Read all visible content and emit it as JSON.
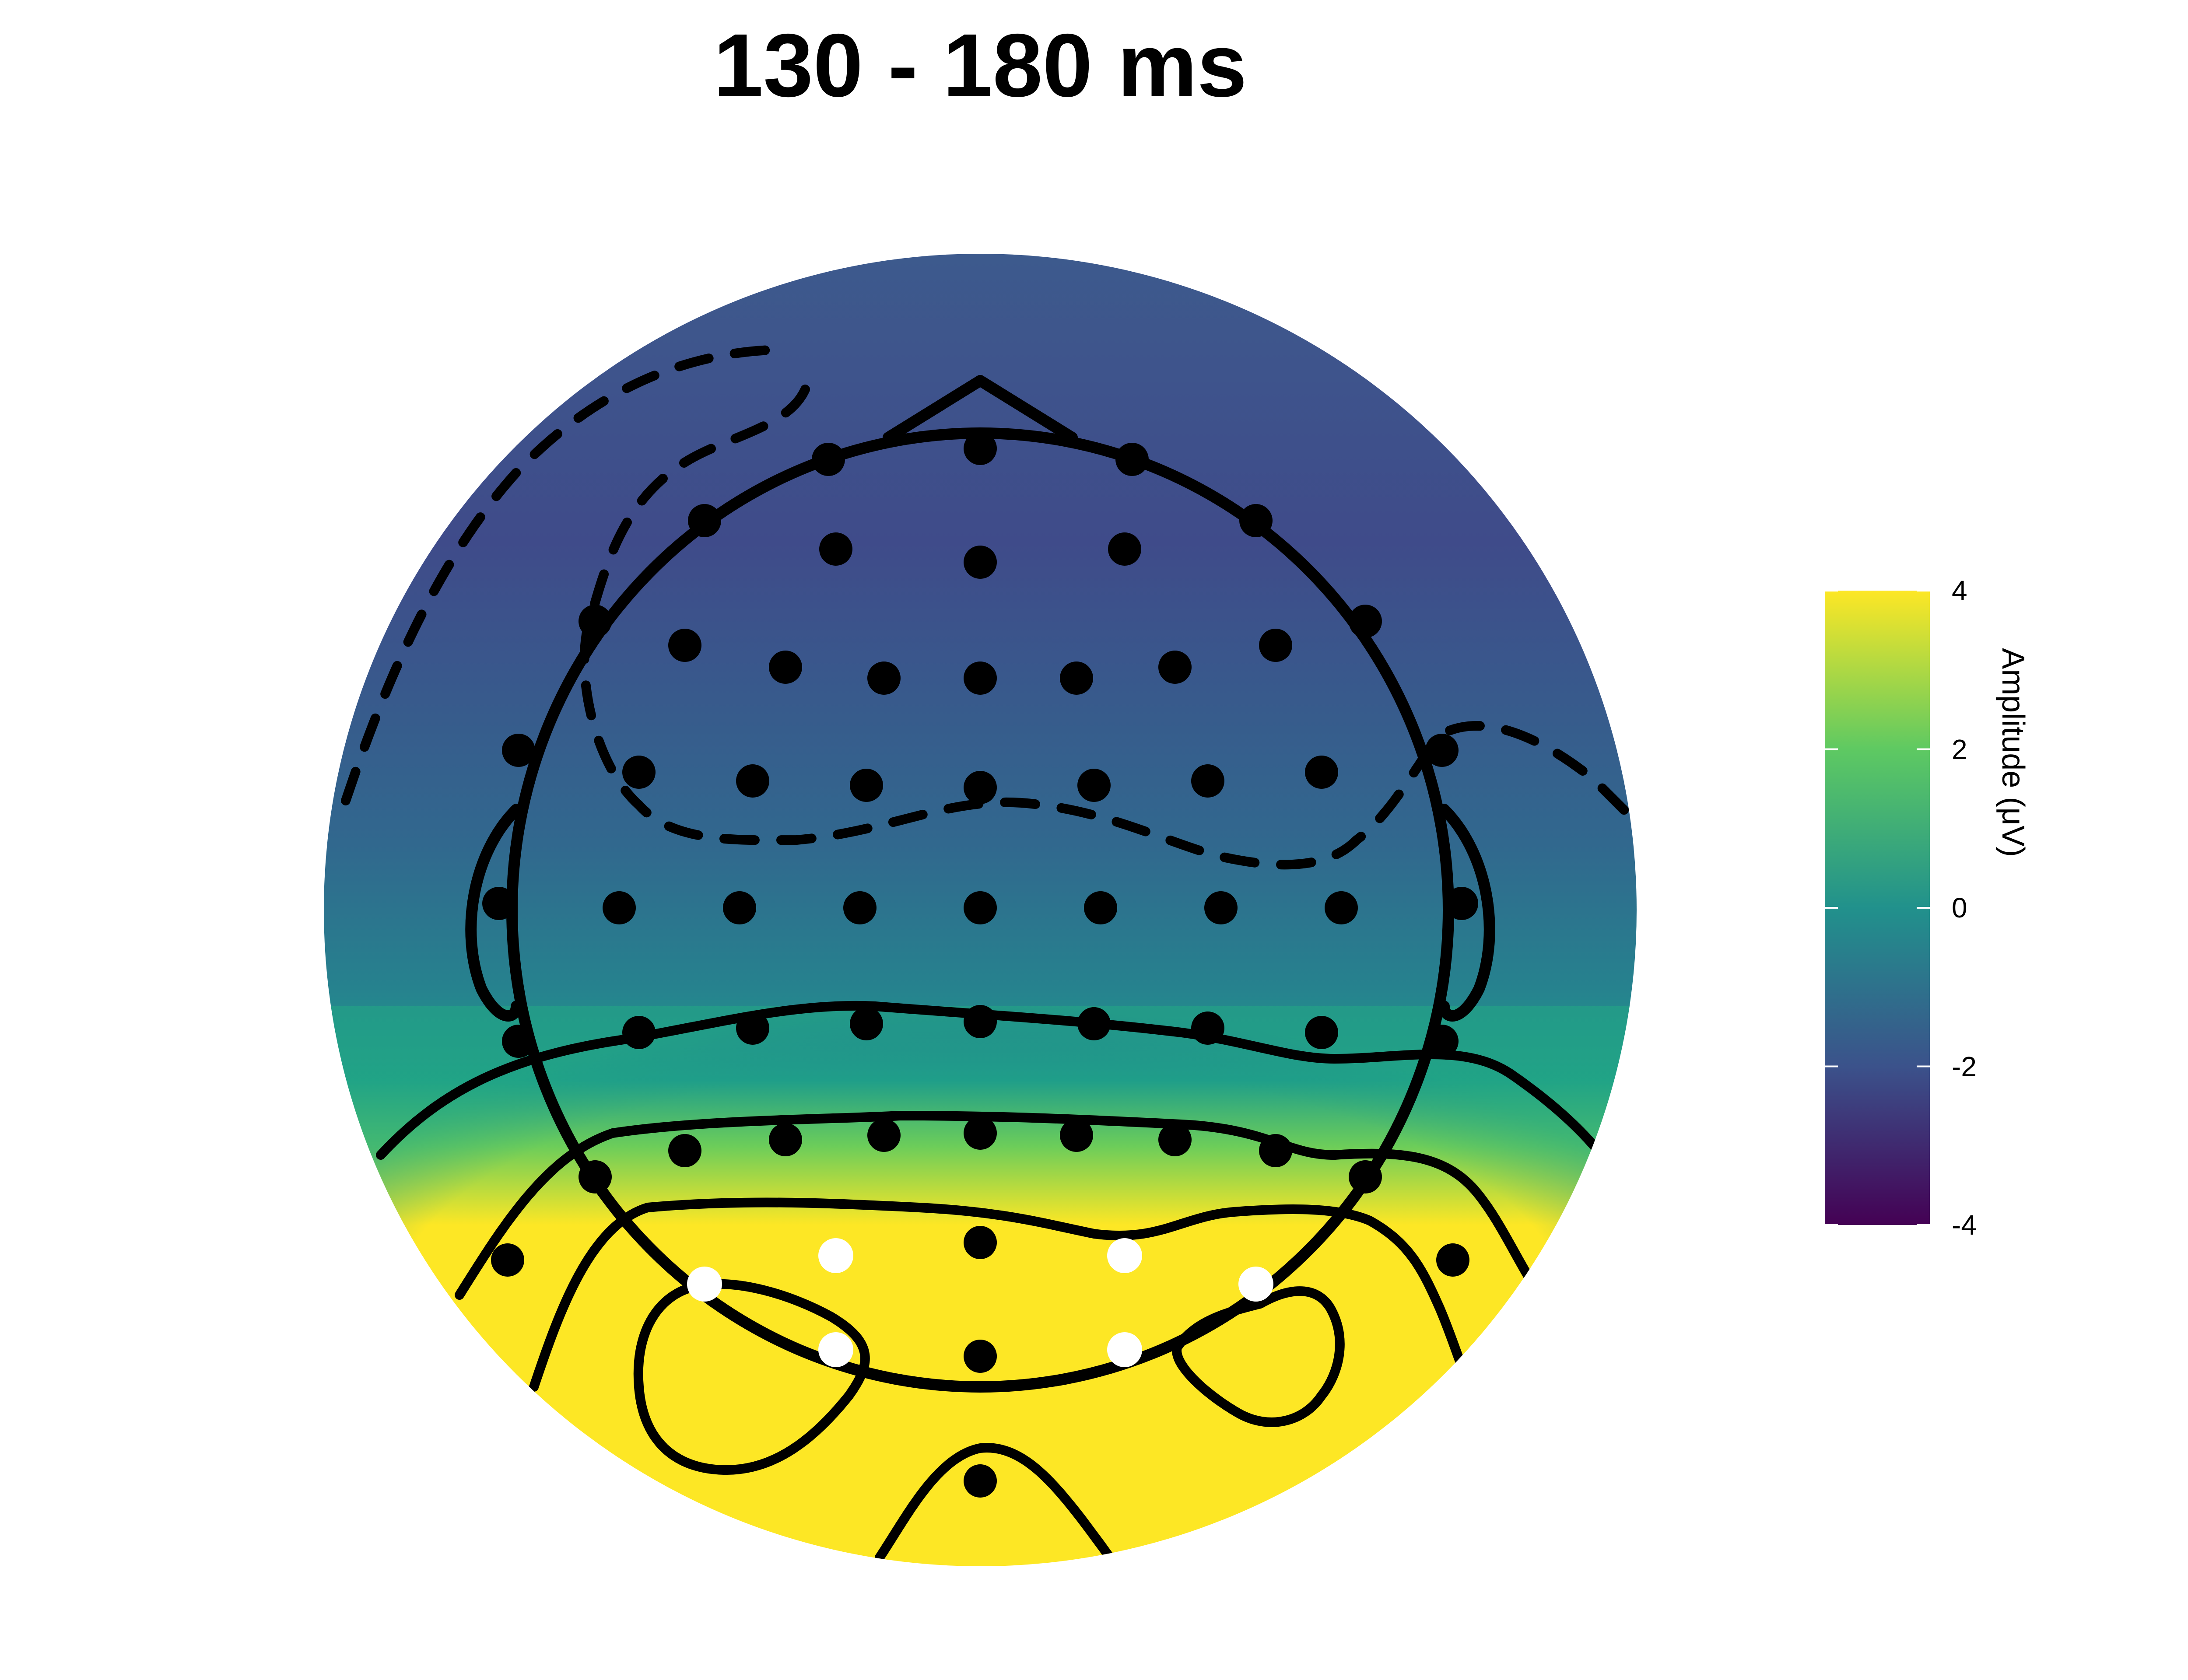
{
  "title": "130 - 180 ms",
  "colorbar": {
    "label": "Amplitude (μV)",
    "ticks": [
      "4",
      "2",
      "0",
      "-2",
      "-4"
    ],
    "colors": [
      "#440154",
      "#3b528b",
      "#21918c",
      "#5ec962",
      "#fde725"
    ],
    "vmin": -4,
    "vmax": 4
  },
  "chart_data": {
    "type": "heatmap",
    "title": "130 - 180 ms",
    "colormap": "viridis",
    "range": [
      -4,
      4
    ],
    "contour_levels": [
      -2,
      -1,
      0,
      1,
      2,
      3
    ],
    "negative_contours_dashed": true,
    "highlighted_electrodes": 6,
    "electrode_count": 64
  }
}
